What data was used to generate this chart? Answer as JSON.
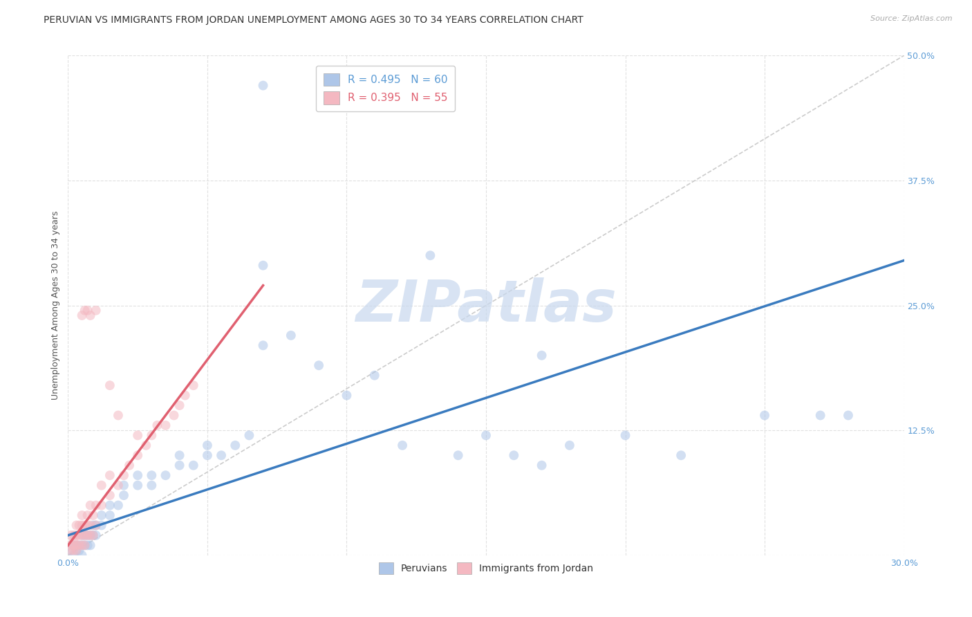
{
  "title": "PERUVIAN VS IMMIGRANTS FROM JORDAN UNEMPLOYMENT AMONG AGES 30 TO 34 YEARS CORRELATION CHART",
  "source": "Source: ZipAtlas.com",
  "ylabel": "Unemployment Among Ages 30 to 34 years",
  "xlim": [
    0.0,
    0.3
  ],
  "ylim": [
    0.0,
    0.5
  ],
  "xticks": [
    0.0,
    0.05,
    0.1,
    0.15,
    0.2,
    0.25,
    0.3
  ],
  "yticks": [
    0.0,
    0.125,
    0.25,
    0.375,
    0.5
  ],
  "blue_scatter": [
    [
      0.001,
      0.005
    ],
    [
      0.002,
      0.0
    ],
    [
      0.002,
      0.01
    ],
    [
      0.003,
      0.005
    ],
    [
      0.003,
      0.01
    ],
    [
      0.004,
      0.005
    ],
    [
      0.004,
      0.01
    ],
    [
      0.005,
      0.0
    ],
    [
      0.005,
      0.01
    ],
    [
      0.005,
      0.02
    ],
    [
      0.006,
      0.01
    ],
    [
      0.006,
      0.02
    ],
    [
      0.007,
      0.01
    ],
    [
      0.007,
      0.02
    ],
    [
      0.008,
      0.01
    ],
    [
      0.008,
      0.02
    ],
    [
      0.009,
      0.02
    ],
    [
      0.009,
      0.03
    ],
    [
      0.01,
      0.02
    ],
    [
      0.01,
      0.03
    ],
    [
      0.012,
      0.03
    ],
    [
      0.012,
      0.04
    ],
    [
      0.015,
      0.04
    ],
    [
      0.015,
      0.05
    ],
    [
      0.018,
      0.05
    ],
    [
      0.02,
      0.06
    ],
    [
      0.02,
      0.07
    ],
    [
      0.025,
      0.07
    ],
    [
      0.025,
      0.08
    ],
    [
      0.03,
      0.07
    ],
    [
      0.03,
      0.08
    ],
    [
      0.035,
      0.08
    ],
    [
      0.04,
      0.09
    ],
    [
      0.04,
      0.1
    ],
    [
      0.045,
      0.09
    ],
    [
      0.05,
      0.1
    ],
    [
      0.05,
      0.11
    ],
    [
      0.055,
      0.1
    ],
    [
      0.06,
      0.11
    ],
    [
      0.065,
      0.12
    ],
    [
      0.07,
      0.29
    ],
    [
      0.07,
      0.21
    ],
    [
      0.08,
      0.22
    ],
    [
      0.09,
      0.19
    ],
    [
      0.1,
      0.16
    ],
    [
      0.11,
      0.18
    ],
    [
      0.12,
      0.11
    ],
    [
      0.14,
      0.1
    ],
    [
      0.15,
      0.12
    ],
    [
      0.16,
      0.1
    ],
    [
      0.17,
      0.09
    ],
    [
      0.18,
      0.11
    ],
    [
      0.2,
      0.12
    ],
    [
      0.22,
      0.1
    ],
    [
      0.25,
      0.14
    ],
    [
      0.27,
      0.14
    ],
    [
      0.13,
      0.3
    ],
    [
      0.17,
      0.2
    ],
    [
      0.28,
      0.14
    ],
    [
      0.07,
      0.47
    ]
  ],
  "pink_scatter": [
    [
      0.001,
      0.005
    ],
    [
      0.001,
      0.01
    ],
    [
      0.001,
      0.02
    ],
    [
      0.002,
      0.005
    ],
    [
      0.002,
      0.01
    ],
    [
      0.002,
      0.015
    ],
    [
      0.002,
      0.02
    ],
    [
      0.003,
      0.005
    ],
    [
      0.003,
      0.01
    ],
    [
      0.003,
      0.02
    ],
    [
      0.003,
      0.03
    ],
    [
      0.004,
      0.01
    ],
    [
      0.004,
      0.02
    ],
    [
      0.004,
      0.03
    ],
    [
      0.005,
      0.01
    ],
    [
      0.005,
      0.02
    ],
    [
      0.005,
      0.03
    ],
    [
      0.005,
      0.04
    ],
    [
      0.006,
      0.01
    ],
    [
      0.006,
      0.02
    ],
    [
      0.006,
      0.03
    ],
    [
      0.007,
      0.02
    ],
    [
      0.007,
      0.03
    ],
    [
      0.007,
      0.04
    ],
    [
      0.008,
      0.02
    ],
    [
      0.008,
      0.03
    ],
    [
      0.008,
      0.05
    ],
    [
      0.009,
      0.02
    ],
    [
      0.009,
      0.04
    ],
    [
      0.01,
      0.03
    ],
    [
      0.01,
      0.05
    ],
    [
      0.012,
      0.05
    ],
    [
      0.012,
      0.07
    ],
    [
      0.015,
      0.06
    ],
    [
      0.015,
      0.08
    ],
    [
      0.018,
      0.07
    ],
    [
      0.02,
      0.08
    ],
    [
      0.022,
      0.09
    ],
    [
      0.025,
      0.1
    ],
    [
      0.025,
      0.12
    ],
    [
      0.028,
      0.11
    ],
    [
      0.03,
      0.12
    ],
    [
      0.032,
      0.13
    ],
    [
      0.035,
      0.13
    ],
    [
      0.038,
      0.14
    ],
    [
      0.04,
      0.15
    ],
    [
      0.042,
      0.16
    ],
    [
      0.045,
      0.17
    ],
    [
      0.006,
      0.245
    ],
    [
      0.005,
      0.24
    ],
    [
      0.007,
      0.245
    ],
    [
      0.01,
      0.245
    ],
    [
      0.008,
      0.24
    ],
    [
      0.015,
      0.17
    ],
    [
      0.018,
      0.14
    ]
  ],
  "blue_line_x": [
    0.0,
    0.3
  ],
  "blue_line_y": [
    0.02,
    0.295
  ],
  "pink_line_x": [
    0.0,
    0.07
  ],
  "pink_line_y": [
    0.01,
    0.27
  ],
  "ref_line_x": [
    0.0,
    0.3
  ],
  "ref_line_y": [
    0.0,
    0.5
  ],
  "watermark": "ZIPatlas",
  "watermark_color": "#c8d8ee",
  "scatter_alpha": 0.55,
  "scatter_size": 100,
  "blue_color": "#aec6e8",
  "pink_color": "#f4b8c1",
  "blue_line_color": "#3a7bbf",
  "pink_line_color": "#e06070",
  "ref_line_color": "#cccccc",
  "title_fontsize": 10,
  "axis_label_fontsize": 9,
  "tick_fontsize": 9,
  "legend_fontsize": 11,
  "source_fontsize": 8
}
